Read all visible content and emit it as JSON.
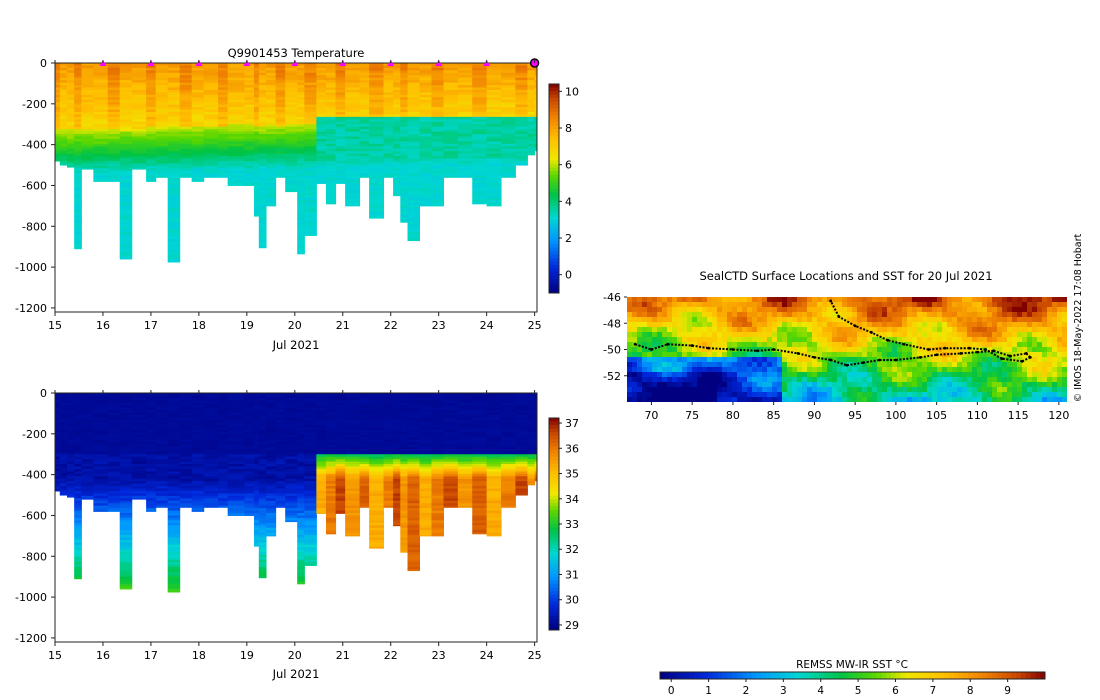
{
  "chart_data": [
    {
      "type": "heatmap",
      "id": "temperature",
      "title": "Q9901453  Temperature",
      "xlabel": "Jul 2021",
      "x_ticks": [
        15,
        16,
        17,
        18,
        19,
        20,
        21,
        22,
        23,
        24,
        25
      ],
      "xlim": [
        15,
        25.05
      ],
      "y_ticks": [
        0,
        -200,
        -400,
        -600,
        -800,
        -1000,
        -1200
      ],
      "ylim": [
        -1220,
        0
      ],
      "colorbar": {
        "ticks": [
          0,
          2,
          4,
          6,
          8,
          10
        ],
        "range": [
          -1,
          10.4
        ]
      },
      "surface_markers_days": [
        16,
        17,
        18,
        19,
        20,
        21,
        22,
        23,
        24,
        25
      ],
      "profile_bottom_depths_m": [
        [
          15.0,
          480
        ],
        [
          15.1,
          500
        ],
        [
          15.25,
          510
        ],
        [
          15.4,
          910
        ],
        [
          15.55,
          520
        ],
        [
          15.8,
          580
        ],
        [
          16.1,
          580
        ],
        [
          16.35,
          960
        ],
        [
          16.6,
          520
        ],
        [
          16.9,
          580
        ],
        [
          17.1,
          560
        ],
        [
          17.35,
          975
        ],
        [
          17.6,
          560
        ],
        [
          17.85,
          580
        ],
        [
          18.1,
          560
        ],
        [
          18.4,
          560
        ],
        [
          18.6,
          600
        ],
        [
          18.95,
          600
        ],
        [
          19.15,
          750
        ],
        [
          19.25,
          905
        ],
        [
          19.4,
          700
        ],
        [
          19.6,
          560
        ],
        [
          19.8,
          630
        ],
        [
          20.05,
          935
        ],
        [
          20.2,
          845
        ],
        [
          20.45,
          590
        ],
        [
          20.65,
          690
        ],
        [
          20.85,
          590
        ],
        [
          21.05,
          700
        ],
        [
          21.35,
          560
        ],
        [
          21.55,
          760
        ],
        [
          21.85,
          560
        ],
        [
          22.05,
          650
        ],
        [
          22.2,
          780
        ],
        [
          22.35,
          870
        ],
        [
          22.6,
          700
        ],
        [
          22.85,
          700
        ],
        [
          23.1,
          560
        ],
        [
          23.4,
          560
        ],
        [
          23.7,
          690
        ],
        [
          24.0,
          700
        ],
        [
          24.3,
          560
        ],
        [
          24.6,
          500
        ],
        [
          24.85,
          450
        ],
        [
          25.0,
          430
        ]
      ]
    },
    {
      "type": "heatmap",
      "id": "salinity",
      "title": "",
      "xlabel": "Jul 2021",
      "x_ticks": [
        15,
        16,
        17,
        18,
        19,
        20,
        21,
        22,
        23,
        24,
        25
      ],
      "xlim": [
        15,
        25.05
      ],
      "y_ticks": [
        0,
        -200,
        -400,
        -600,
        -800,
        -1000,
        -1200
      ],
      "ylim": [
        -1220,
        0
      ],
      "colorbar": {
        "ticks": [
          29,
          30,
          31,
          32,
          33,
          34,
          35,
          36,
          37
        ],
        "range": [
          28.8,
          37.2
        ]
      }
    },
    {
      "type": "heatmap",
      "id": "sst_map",
      "title": "SealCTD Surface Locations and SST for 20 Jul 2021",
      "x_ticks": [
        70,
        75,
        80,
        85,
        90,
        95,
        100,
        105,
        110,
        115,
        120
      ],
      "xlim": [
        67,
        121
      ],
      "y_ticks": [
        -46,
        -48,
        -50,
        -52
      ],
      "ylim": [
        -54,
        -46
      ],
      "colorbar": {
        "label": "REMSS MW-IR SST °C",
        "ticks": [
          0,
          1,
          2,
          3,
          4,
          5,
          6,
          7,
          8,
          9
        ],
        "range": [
          -0.3,
          10
        ]
      },
      "track": [
        [
          68.0,
          -49.6
        ],
        [
          70.0,
          -50.0
        ],
        [
          72.0,
          -49.6
        ],
        [
          75.0,
          -49.7
        ],
        [
          77.0,
          -49.9
        ],
        [
          80.0,
          -50.0
        ],
        [
          83.0,
          -50.1
        ],
        [
          85.0,
          -50.0
        ],
        [
          88.0,
          -50.3
        ],
        [
          90.0,
          -50.6
        ],
        [
          92.0,
          -50.8
        ],
        [
          94.0,
          -51.2
        ],
        [
          96.0,
          -51.0
        ],
        [
          98.0,
          -50.8
        ],
        [
          100.0,
          -50.8
        ],
        [
          103.0,
          -50.6
        ],
        [
          105.0,
          -50.4
        ],
        [
          108.0,
          -50.3
        ],
        [
          110.0,
          -50.2
        ],
        [
          112.0,
          -50.1
        ],
        [
          114.0,
          -50.5
        ],
        [
          116.0,
          -50.3
        ],
        [
          116.5,
          -50.6
        ],
        [
          115.5,
          -50.9
        ],
        [
          113.0,
          -50.7
        ],
        [
          111.0,
          -50.0
        ],
        [
          109.0,
          -49.9
        ],
        [
          106.0,
          -49.9
        ],
        [
          104.0,
          -50.0
        ],
        [
          101.0,
          -49.6
        ],
        [
          99.0,
          -49.3
        ],
        [
          97.0,
          -48.7
        ],
        [
          95.0,
          -48.2
        ],
        [
          93.0,
          -47.5
        ],
        [
          92.0,
          -46.3
        ]
      ]
    }
  ],
  "credit": "© IMOS 18-May-2022 17:08 Hobart"
}
